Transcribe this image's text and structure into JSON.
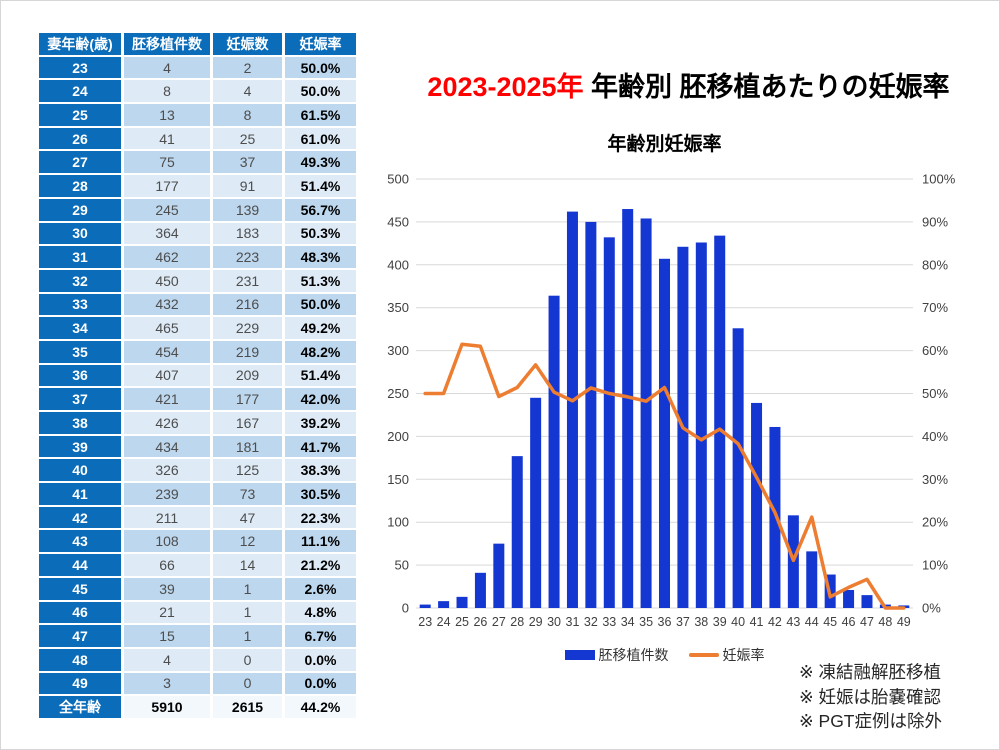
{
  "titles": {
    "main_red": "2023-2025年",
    "main_black": " 年齢別 胚移植あたりの妊娠率",
    "chart_title": "年齢別妊娠率"
  },
  "table": {
    "headers": [
      "妻年齢(歳)",
      "胚移植件数",
      "妊娠数",
      "妊娠率"
    ],
    "rows": [
      [
        "23",
        "4",
        "2",
        "50.0%"
      ],
      [
        "24",
        "8",
        "4",
        "50.0%"
      ],
      [
        "25",
        "13",
        "8",
        "61.5%"
      ],
      [
        "26",
        "41",
        "25",
        "61.0%"
      ],
      [
        "27",
        "75",
        "37",
        "49.3%"
      ],
      [
        "28",
        "177",
        "91",
        "51.4%"
      ],
      [
        "29",
        "245",
        "139",
        "56.7%"
      ],
      [
        "30",
        "364",
        "183",
        "50.3%"
      ],
      [
        "31",
        "462",
        "223",
        "48.3%"
      ],
      [
        "32",
        "450",
        "231",
        "51.3%"
      ],
      [
        "33",
        "432",
        "216",
        "50.0%"
      ],
      [
        "34",
        "465",
        "229",
        "49.2%"
      ],
      [
        "35",
        "454",
        "219",
        "48.2%"
      ],
      [
        "36",
        "407",
        "209",
        "51.4%"
      ],
      [
        "37",
        "421",
        "177",
        "42.0%"
      ],
      [
        "38",
        "426",
        "167",
        "39.2%"
      ],
      [
        "39",
        "434",
        "181",
        "41.7%"
      ],
      [
        "40",
        "326",
        "125",
        "38.3%"
      ],
      [
        "41",
        "239",
        "73",
        "30.5%"
      ],
      [
        "42",
        "211",
        "47",
        "22.3%"
      ],
      [
        "43",
        "108",
        "12",
        "11.1%"
      ],
      [
        "44",
        "66",
        "14",
        "21.2%"
      ],
      [
        "45",
        "39",
        "1",
        "2.6%"
      ],
      [
        "46",
        "21",
        "1",
        "4.8%"
      ],
      [
        "47",
        "15",
        "1",
        "6.7%"
      ],
      [
        "48",
        "4",
        "0",
        "0.0%"
      ],
      [
        "49",
        "3",
        "0",
        "0.0%"
      ]
    ],
    "total": [
      "全年齢",
      "5910",
      "2615",
      "44.2%"
    ]
  },
  "chart_data": {
    "type": "bar",
    "combo": "bar+line-dual-axis",
    "title": "年齢別妊娠率",
    "categories": [
      23,
      24,
      25,
      26,
      27,
      28,
      29,
      30,
      31,
      32,
      33,
      34,
      35,
      36,
      37,
      38,
      39,
      40,
      41,
      42,
      43,
      44,
      45,
      46,
      47,
      48,
      49
    ],
    "series": [
      {
        "name": "胚移植件数",
        "type": "bar",
        "axis": "left",
        "values": [
          4,
          8,
          13,
          41,
          75,
          177,
          245,
          364,
          462,
          450,
          432,
          465,
          454,
          407,
          421,
          426,
          434,
          326,
          239,
          211,
          108,
          66,
          39,
          21,
          15,
          4,
          3
        ]
      },
      {
        "name": "妊娠率",
        "type": "line",
        "axis": "right",
        "values": [
          50.0,
          50.0,
          61.5,
          61.0,
          49.3,
          51.4,
          56.7,
          50.3,
          48.3,
          51.3,
          50.0,
          49.2,
          48.2,
          51.4,
          42.0,
          39.2,
          41.7,
          38.3,
          30.5,
          22.3,
          11.1,
          21.2,
          2.6,
          4.8,
          6.7,
          0.0,
          0.0
        ]
      }
    ],
    "left_axis": {
      "min": 0,
      "max": 500,
      "step": 50,
      "suffix": ""
    },
    "right_axis": {
      "min": 0,
      "max": 100,
      "step": 10,
      "suffix": "%"
    },
    "grid": true,
    "legend_position": "bottom",
    "xlabel": "",
    "ylabel": ""
  },
  "notes": [
    "※ 凍結融解胚移植",
    "※ 妊娠は胎嚢確認",
    "※ PGT症例は除外"
  ],
  "colors": {
    "table_header_blue": "#0B6CBA",
    "row_dark": "#BDD7EE",
    "row_light": "#DEEBF7",
    "total_value_bg": "#F2F8FC",
    "bar_blue": "#1437D2",
    "line_orange": "#ED7D31",
    "title_red": "#FF0000",
    "gridline": "#D9D9D9",
    "axis_text": "#404040"
  }
}
